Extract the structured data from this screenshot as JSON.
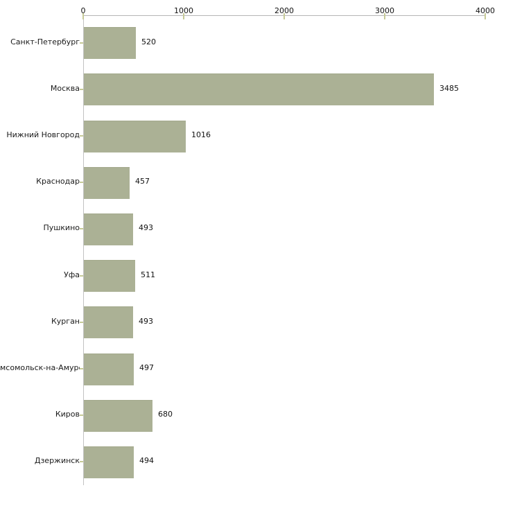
{
  "chart_data": {
    "type": "bar",
    "orientation": "horizontal",
    "title": "",
    "xlabel": "",
    "ylabel": "",
    "categories": [
      "Санкт-Петербург",
      "Москва",
      "Нижний Новгород",
      "Краснодар",
      "Пушкино",
      "Уфа",
      "Курган",
      "мсомольск-на-Амуре",
      "Киров",
      "Дзержинск"
    ],
    "values": [
      520,
      3485,
      1016,
      457,
      493,
      511,
      493,
      497,
      680,
      494
    ],
    "value_labels": [
      "520",
      "3485",
      "1016",
      "457",
      "493",
      "511",
      "493",
      "497",
      "680",
      "494"
    ],
    "x_ticks": [
      0,
      1000,
      2000,
      3000,
      4000
    ],
    "x_tick_labels": [
      "0",
      "1000",
      "2000",
      "3000",
      "4000"
    ],
    "xlim": [
      0,
      4000
    ],
    "grid": false,
    "legend": "none",
    "colors": {
      "bar_fill": "#abb195",
      "bar_edge": "#a3a98c",
      "axis_line": "#b5b5b5",
      "tick_mark": "#c6ca96",
      "text": "#1a1a1a",
      "background": "#ffffff"
    }
  }
}
